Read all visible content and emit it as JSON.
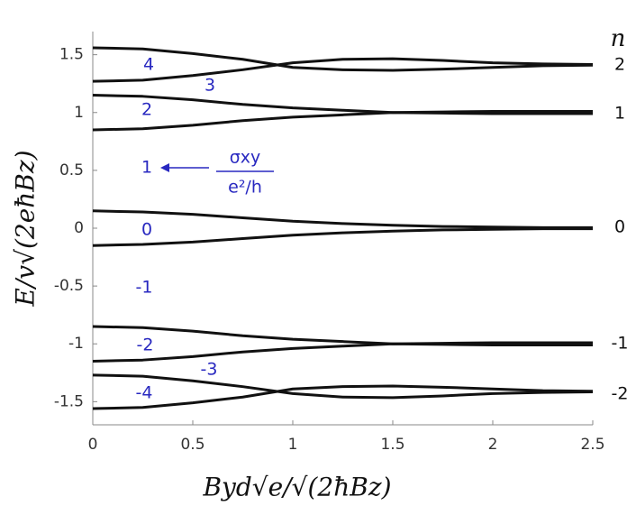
{
  "chart_data": {
    "type": "line",
    "x_label": "Byd√e/√(2ħBz)",
    "y_label": "E/v√(2eħBz)",
    "x": [
      0,
      0.25,
      0.5,
      0.75,
      1,
      1.25,
      1.5,
      1.75,
      2,
      2.25,
      2.5
    ],
    "xlim": [
      0,
      2.5
    ],
    "xticks": [
      0,
      0.5,
      1,
      1.5,
      2,
      2.5
    ],
    "ylim": [
      -1.7,
      1.7
    ],
    "yticks": [
      -1.5,
      -1,
      -0.5,
      0,
      0.5,
      1,
      1.5
    ],
    "line_width": 3,
    "series": [
      {
        "color": "#111111",
        "values": [
          1.56,
          1.55,
          1.51,
          1.46,
          1.39,
          1.37,
          1.365,
          1.375,
          1.39,
          1.405,
          1.41
        ]
      },
      {
        "color": "#111111",
        "values": [
          1.27,
          1.28,
          1.32,
          1.37,
          1.43,
          1.46,
          1.465,
          1.45,
          1.43,
          1.42,
          1.415
        ]
      },
      {
        "color": "#111111",
        "values": [
          1.15,
          1.14,
          1.11,
          1.07,
          1.04,
          1.02,
          1.0,
          1.005,
          1.01,
          1.01,
          1.01
        ]
      },
      {
        "color": "#111111",
        "values": [
          0.85,
          0.86,
          0.89,
          0.93,
          0.96,
          0.98,
          1.0,
          0.995,
          0.99,
          0.99,
          0.99
        ]
      },
      {
        "color": "#111111",
        "values": [
          0.15,
          0.14,
          0.12,
          0.09,
          0.06,
          0.04,
          0.025,
          0.015,
          0.01,
          0.005,
          0.005
        ]
      },
      {
        "color": "#111111",
        "values": [
          -0.15,
          -0.14,
          -0.12,
          -0.09,
          -0.06,
          -0.04,
          -0.025,
          -0.015,
          -0.01,
          -0.005,
          -0.005
        ]
      },
      {
        "color": "#111111",
        "values": [
          -0.85,
          -0.86,
          -0.89,
          -0.93,
          -0.96,
          -0.98,
          -1.0,
          -0.995,
          -0.99,
          -0.99,
          -0.99
        ]
      },
      {
        "color": "#111111",
        "values": [
          -1.15,
          -1.14,
          -1.11,
          -1.07,
          -1.04,
          -1.02,
          -1.0,
          -1.005,
          -1.01,
          -1.01,
          -1.01
        ]
      },
      {
        "color": "#111111",
        "values": [
          -1.27,
          -1.28,
          -1.32,
          -1.37,
          -1.43,
          -1.46,
          -1.465,
          -1.45,
          -1.43,
          -1.42,
          -1.415
        ]
      },
      {
        "color": "#111111",
        "values": [
          -1.56,
          -1.55,
          -1.51,
          -1.46,
          -1.39,
          -1.37,
          -1.365,
          -1.375,
          -1.39,
          -1.405,
          -1.41
        ]
      }
    ],
    "sigma_labels": [
      "4",
      "3",
      "2",
      "1",
      "0",
      "-1",
      "-2",
      "-3",
      "-4"
    ],
    "sigma_numerator": "σxy",
    "sigma_denominator": "e²/h",
    "level_title": "n",
    "level_labels": [
      "2",
      "1",
      "0",
      "-1",
      "-2"
    ]
  }
}
